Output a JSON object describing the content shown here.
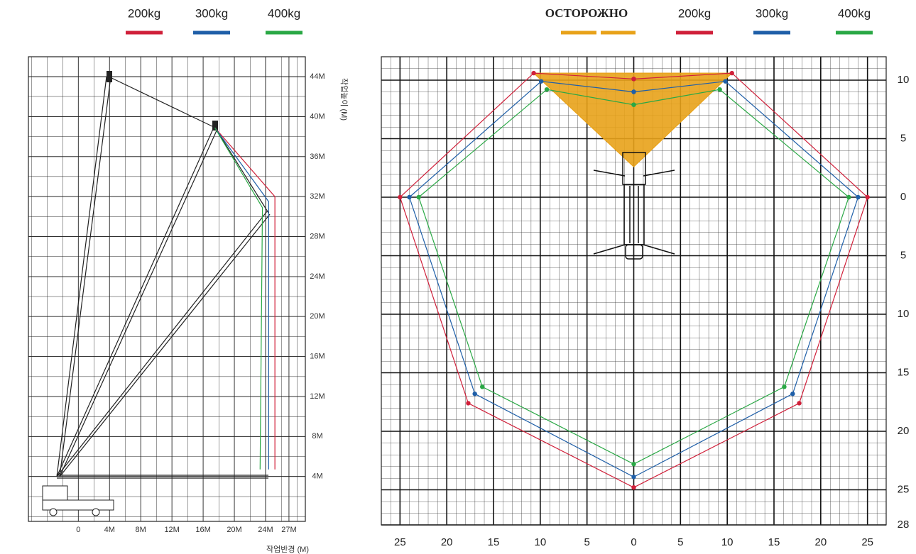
{
  "chart_data": [
    {
      "type": "line",
      "x_label": "작업반경 (M)",
      "y_label": "작업높이 (M)",
      "xlim": [
        -6.4,
        29.1
      ],
      "ylim": [
        -0.5,
        46
      ],
      "xticks": [
        0,
        {
          "value": 4,
          "label": "4M"
        },
        {
          "value": 8,
          "label": "8M"
        },
        {
          "value": 12,
          "label": "12M"
        },
        {
          "value": 16,
          "label": "16M"
        },
        {
          "value": 20,
          "label": "20M"
        },
        {
          "value": 24,
          "label": "24M"
        },
        {
          "value": 27,
          "label": "27M"
        }
      ],
      "yticks": [
        {
          "value": 4,
          "label": "4M"
        },
        {
          "value": 8,
          "label": "8M"
        },
        {
          "value": 12,
          "label": "12M"
        },
        {
          "value": 16,
          "label": "16M"
        },
        {
          "value": 20,
          "label": "20M"
        },
        {
          "value": 24,
          "label": "24M"
        },
        {
          "value": 28,
          "label": "28M"
        },
        {
          "value": 32,
          "label": "32M"
        },
        {
          "value": 36,
          "label": "36M"
        },
        {
          "value": 40,
          "label": "40M"
        },
        {
          "value": 44,
          "label": "44M"
        }
      ],
      "grid": true,
      "legend": "top",
      "series": [
        {
          "name": "200kg",
          "color": "#d0203a",
          "x": [
            17.5,
            25.2,
            25.2
          ],
          "values": [
            38.9,
            32,
            4.7
          ]
        },
        {
          "name": "300kg",
          "color": "#1f5fa8",
          "x": [
            17.5,
            24.4,
            24.4
          ],
          "values": [
            38.9,
            31.5,
            4.7
          ]
        },
        {
          "name": "400kg",
          "color": "#2aa845",
          "x": [
            17.5,
            23.6,
            23.3
          ],
          "values": [
            38.9,
            30.9,
            4.7
          ]
        }
      ]
    },
    {
      "type": "line",
      "xlim": [
        -27,
        27
      ],
      "ylim": [
        -28,
        12
      ],
      "xticks": [
        {
          "value": -25,
          "label": "25"
        },
        {
          "value": -20,
          "label": "20"
        },
        {
          "value": -15,
          "label": "15"
        },
        {
          "value": -10,
          "label": "10"
        },
        {
          "value": -5,
          "label": "5"
        },
        0,
        5,
        10,
        15,
        20,
        25
      ],
      "yticks": [
        10,
        5,
        0,
        {
          "value": -5,
          "label": "5"
        },
        {
          "value": -10,
          "label": "10"
        },
        {
          "value": -15,
          "label": "15"
        },
        {
          "value": -20,
          "label": "20"
        },
        {
          "value": -25,
          "label": "25"
        },
        {
          "value": -28,
          "label": "28"
        }
      ],
      "grid": true,
      "legend": "top",
      "markers": true,
      "series": [
        {
          "name": "ОСТОРОЖНО",
          "color": "#e8a21a",
          "fill": true,
          "x": [
            -10.7,
            10.5,
            0
          ],
          "values": [
            10.6,
            10.6,
            2.6
          ]
        },
        {
          "name": "200kg",
          "color": "#d0203a",
          "x": [
            0,
            10.5,
            25,
            17.7,
            0,
            -17.7,
            -25,
            -10.7,
            0
          ],
          "values": [
            10.1,
            10.6,
            0,
            -17.6,
            -24.8,
            -17.6,
            0,
            10.6,
            10.1
          ]
        },
        {
          "name": "300kg",
          "color": "#1f5fa8",
          "x": [
            0,
            9.8,
            24,
            17,
            0,
            -17,
            -24,
            -9.9,
            0
          ],
          "values": [
            9.0,
            9.9,
            0,
            -16.8,
            -23.9,
            -16.8,
            0,
            9.9,
            9.0
          ]
        },
        {
          "name": "400kg",
          "color": "#2aa845",
          "x": [
            0,
            9.2,
            23,
            16.1,
            0,
            -16.2,
            -23,
            -9.3,
            0
          ],
          "values": [
            7.9,
            9.2,
            0,
            -16.2,
            -22.8,
            -16.2,
            0,
            9.2,
            7.9
          ]
        }
      ]
    }
  ]
}
